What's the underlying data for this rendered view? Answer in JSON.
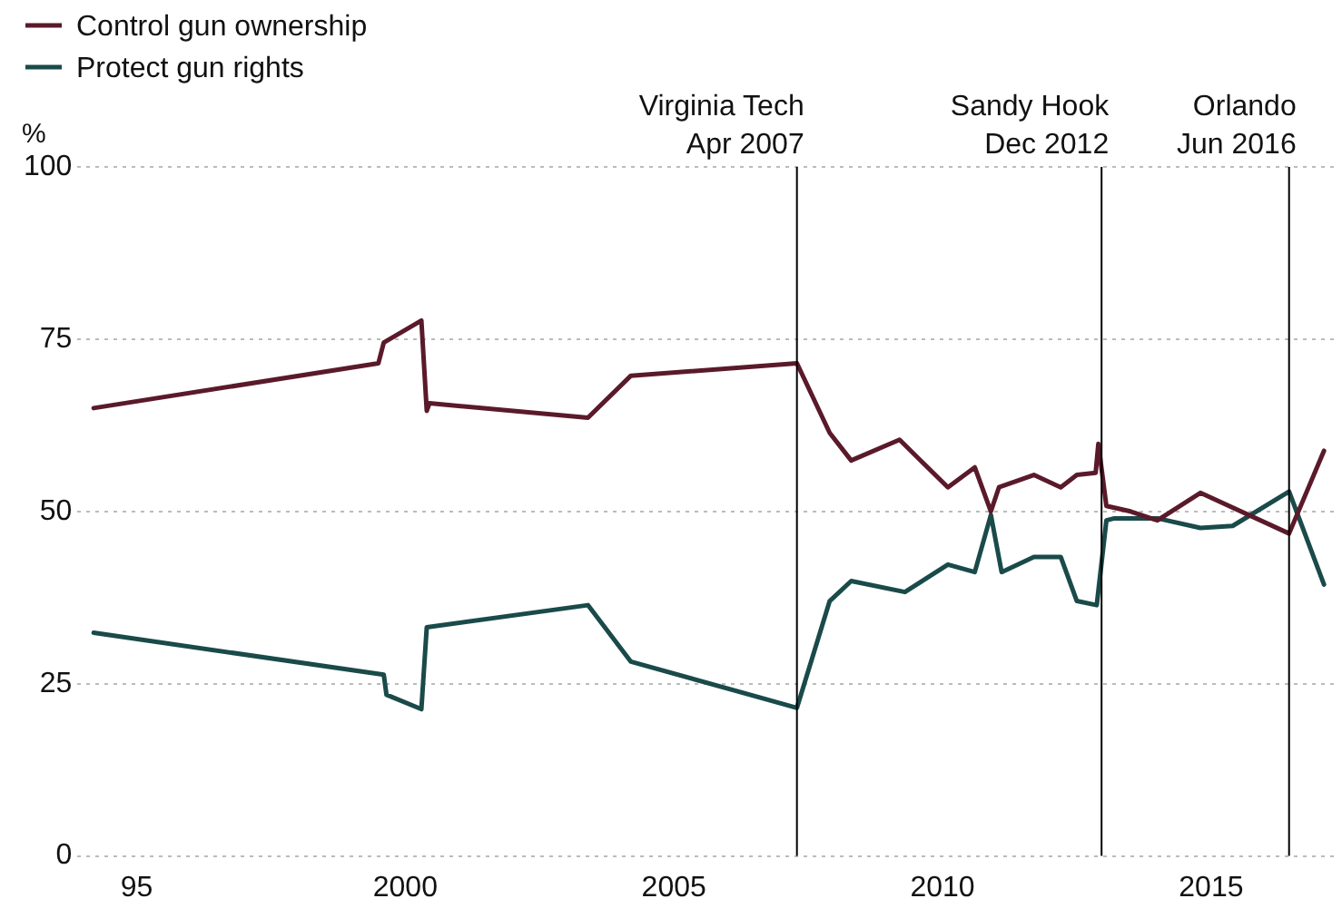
{
  "chart_data": {
    "type": "line",
    "ylabel": "%",
    "xlim": [
      1993.9,
      2017.3
    ],
    "xticks": [
      {
        "value": 1995,
        "label": "95"
      },
      2000,
      2005,
      2010,
      2015
    ],
    "ylim": [
      0,
      100
    ],
    "yticks": [
      0,
      25,
      50,
      75,
      100
    ],
    "grid": "y",
    "legend": "top left",
    "marker": "none",
    "line_style": "solid",
    "series": [
      {
        "name": "Control gun ownership",
        "color": "#5a1a2a",
        "x": [
          1994.2,
          1999.5,
          1999.6,
          2000.3,
          2000.4,
          2000.45,
          2003.4,
          2004.2,
          2007.29,
          2007.9,
          2008.3,
          2009.2,
          2010.1,
          2010.6,
          2010.9,
          2011.05,
          2011.7,
          2012.2,
          2012.5,
          2012.85,
          2012.9,
          2013.05,
          2013.5,
          2014.0,
          2014.8,
          2016.45,
          2017.1
        ],
        "values": [
          65,
          71.5,
          74.5,
          77.7,
          64.6,
          65.7,
          63.6,
          69.7,
          71.5,
          61.4,
          57.4,
          60.4,
          53.5,
          56.4,
          50,
          53.5,
          55.3,
          53.5,
          55.3,
          55.6,
          59.8,
          50.8,
          50,
          48.7,
          52.7,
          46.8,
          58.8
        ]
      },
      {
        "name": "Protect gun rights",
        "color": "#1a4a4a",
        "x": [
          1994.2,
          1999.6,
          1999.65,
          2000.3,
          2000.4,
          2003.4,
          2004.2,
          2007.29,
          2007.9,
          2008.3,
          2009.3,
          2010.1,
          2010.6,
          2010.9,
          2011.1,
          2011.7,
          2012.2,
          2012.5,
          2012.87,
          2013.05,
          2013.2,
          2013.5,
          2014.0,
          2014.8,
          2015.4,
          2016.45,
          2017.1
        ],
        "values": [
          32.4,
          26.3,
          23.4,
          21.3,
          33.2,
          36.4,
          28.2,
          21.5,
          37,
          39.9,
          38.3,
          42.3,
          41.2,
          49.5,
          41.2,
          43.4,
          43.4,
          37,
          36.4,
          48.7,
          49,
          49,
          49,
          47.6,
          47.9,
          52.9,
          39.4
        ]
      }
    ],
    "ref_lines": [
      {
        "axis": "x",
        "value": 2007.29,
        "label": "Virginia Tech\nApr 2007",
        "color": "#000000"
      },
      {
        "axis": "x",
        "value": 2012.96,
        "label": "Sandy Hook\nDec 2012",
        "color": "#000000"
      },
      {
        "axis": "x",
        "value": 2016.45,
        "label": "Orlando\nJun 2016",
        "color": "#000000"
      }
    ]
  }
}
